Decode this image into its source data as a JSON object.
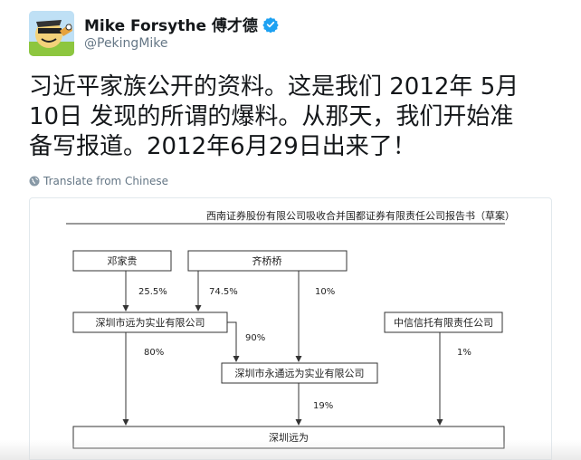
{
  "user": {
    "display_name": "Mike Forsythe 傅才德",
    "handle": "@PekingMike",
    "verified_icon": "verified-badge-icon",
    "avatar_icon": "avatar-cartoon-icon"
  },
  "tweet": {
    "lines": [
      "习近平家族公开的资料。这是我们 2012年 5月",
      "10日 发现的所谓的爆料。从那天，我们开始准",
      "备写报道。2012年6月29日出来了！"
    ]
  },
  "translate": {
    "label": "Translate from Chinese",
    "icon": "globe-icon"
  },
  "document": {
    "header": "西南证券股份有限公司吸收合并国都证券有限责任公司报告书（草案）",
    "nodes": {
      "deng": "邓家贵",
      "qi": "齐桥桥",
      "yuanwei_shiye": "深圳市远为实业有限公司",
      "zhongxin": "中信信托有限责任公司",
      "yongtong": "深圳市永通远为实业有限公司",
      "shenzhen_yuanwei": "深圳远为"
    },
    "edges": {
      "deng_to_yuanwei": "25.5%",
      "qi_to_yuanwei": "74.5%",
      "qi_to_yongtong": "10%",
      "yuanwei_to_yongtong": "90%",
      "yuanwei_to_target": "80%",
      "zhongxin_to_target": "1%",
      "yongtong_to_target": "19%"
    }
  },
  "colors": {
    "text": "#14171a",
    "muted": "#657786",
    "verified": "#1da1f2"
  }
}
